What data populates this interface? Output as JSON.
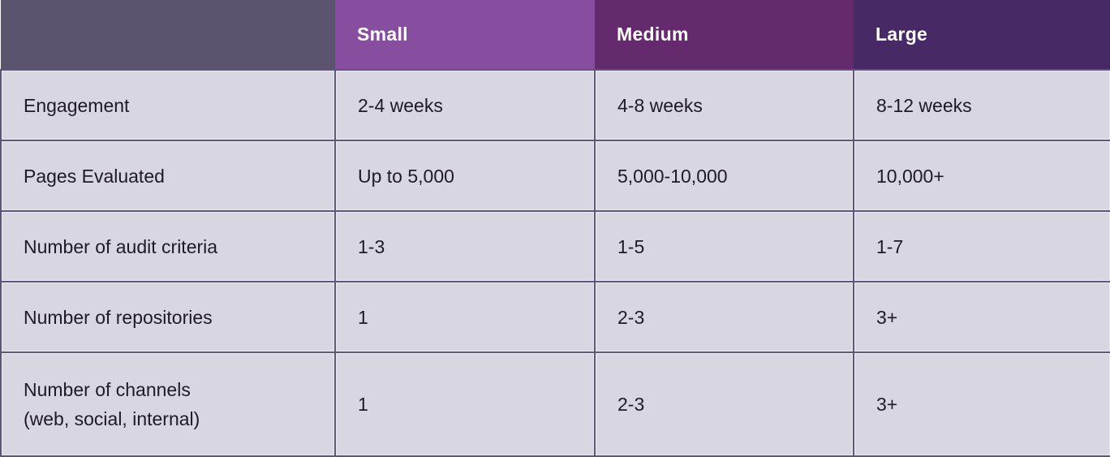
{
  "table": {
    "columns": [
      {
        "label": "",
        "color": "#5C546E"
      },
      {
        "label": "Small",
        "color": "#874D9E"
      },
      {
        "label": "Medium",
        "color": "#652A6D"
      },
      {
        "label": "Large",
        "color": "#472966"
      }
    ],
    "rows": [
      {
        "label": "Engagement",
        "values": [
          "2-4 weeks",
          "4-8 weeks",
          "8-12 weeks"
        ]
      },
      {
        "label": "Pages Evaluated",
        "values": [
          "Up to 5,000",
          "5,000-10,000",
          "10,000+"
        ]
      },
      {
        "label": "Number of audit criteria",
        "values": [
          "1-3",
          "1-5",
          "1-7"
        ]
      },
      {
        "label": "Number of repositories",
        "values": [
          "1",
          "2-3",
          "3+"
        ]
      },
      {
        "label": "Number of channels\n(web, social, internal)",
        "values": [
          "1",
          "2-3",
          "3+"
        ]
      }
    ],
    "style": {
      "body_cell_bg": "#D8D6E0",
      "border_color": "#5D5777",
      "inner_highlight": "#EAE8F1",
      "body_text_color": "#1E1A26",
      "header_text_color": "#FFFFFF"
    }
  }
}
